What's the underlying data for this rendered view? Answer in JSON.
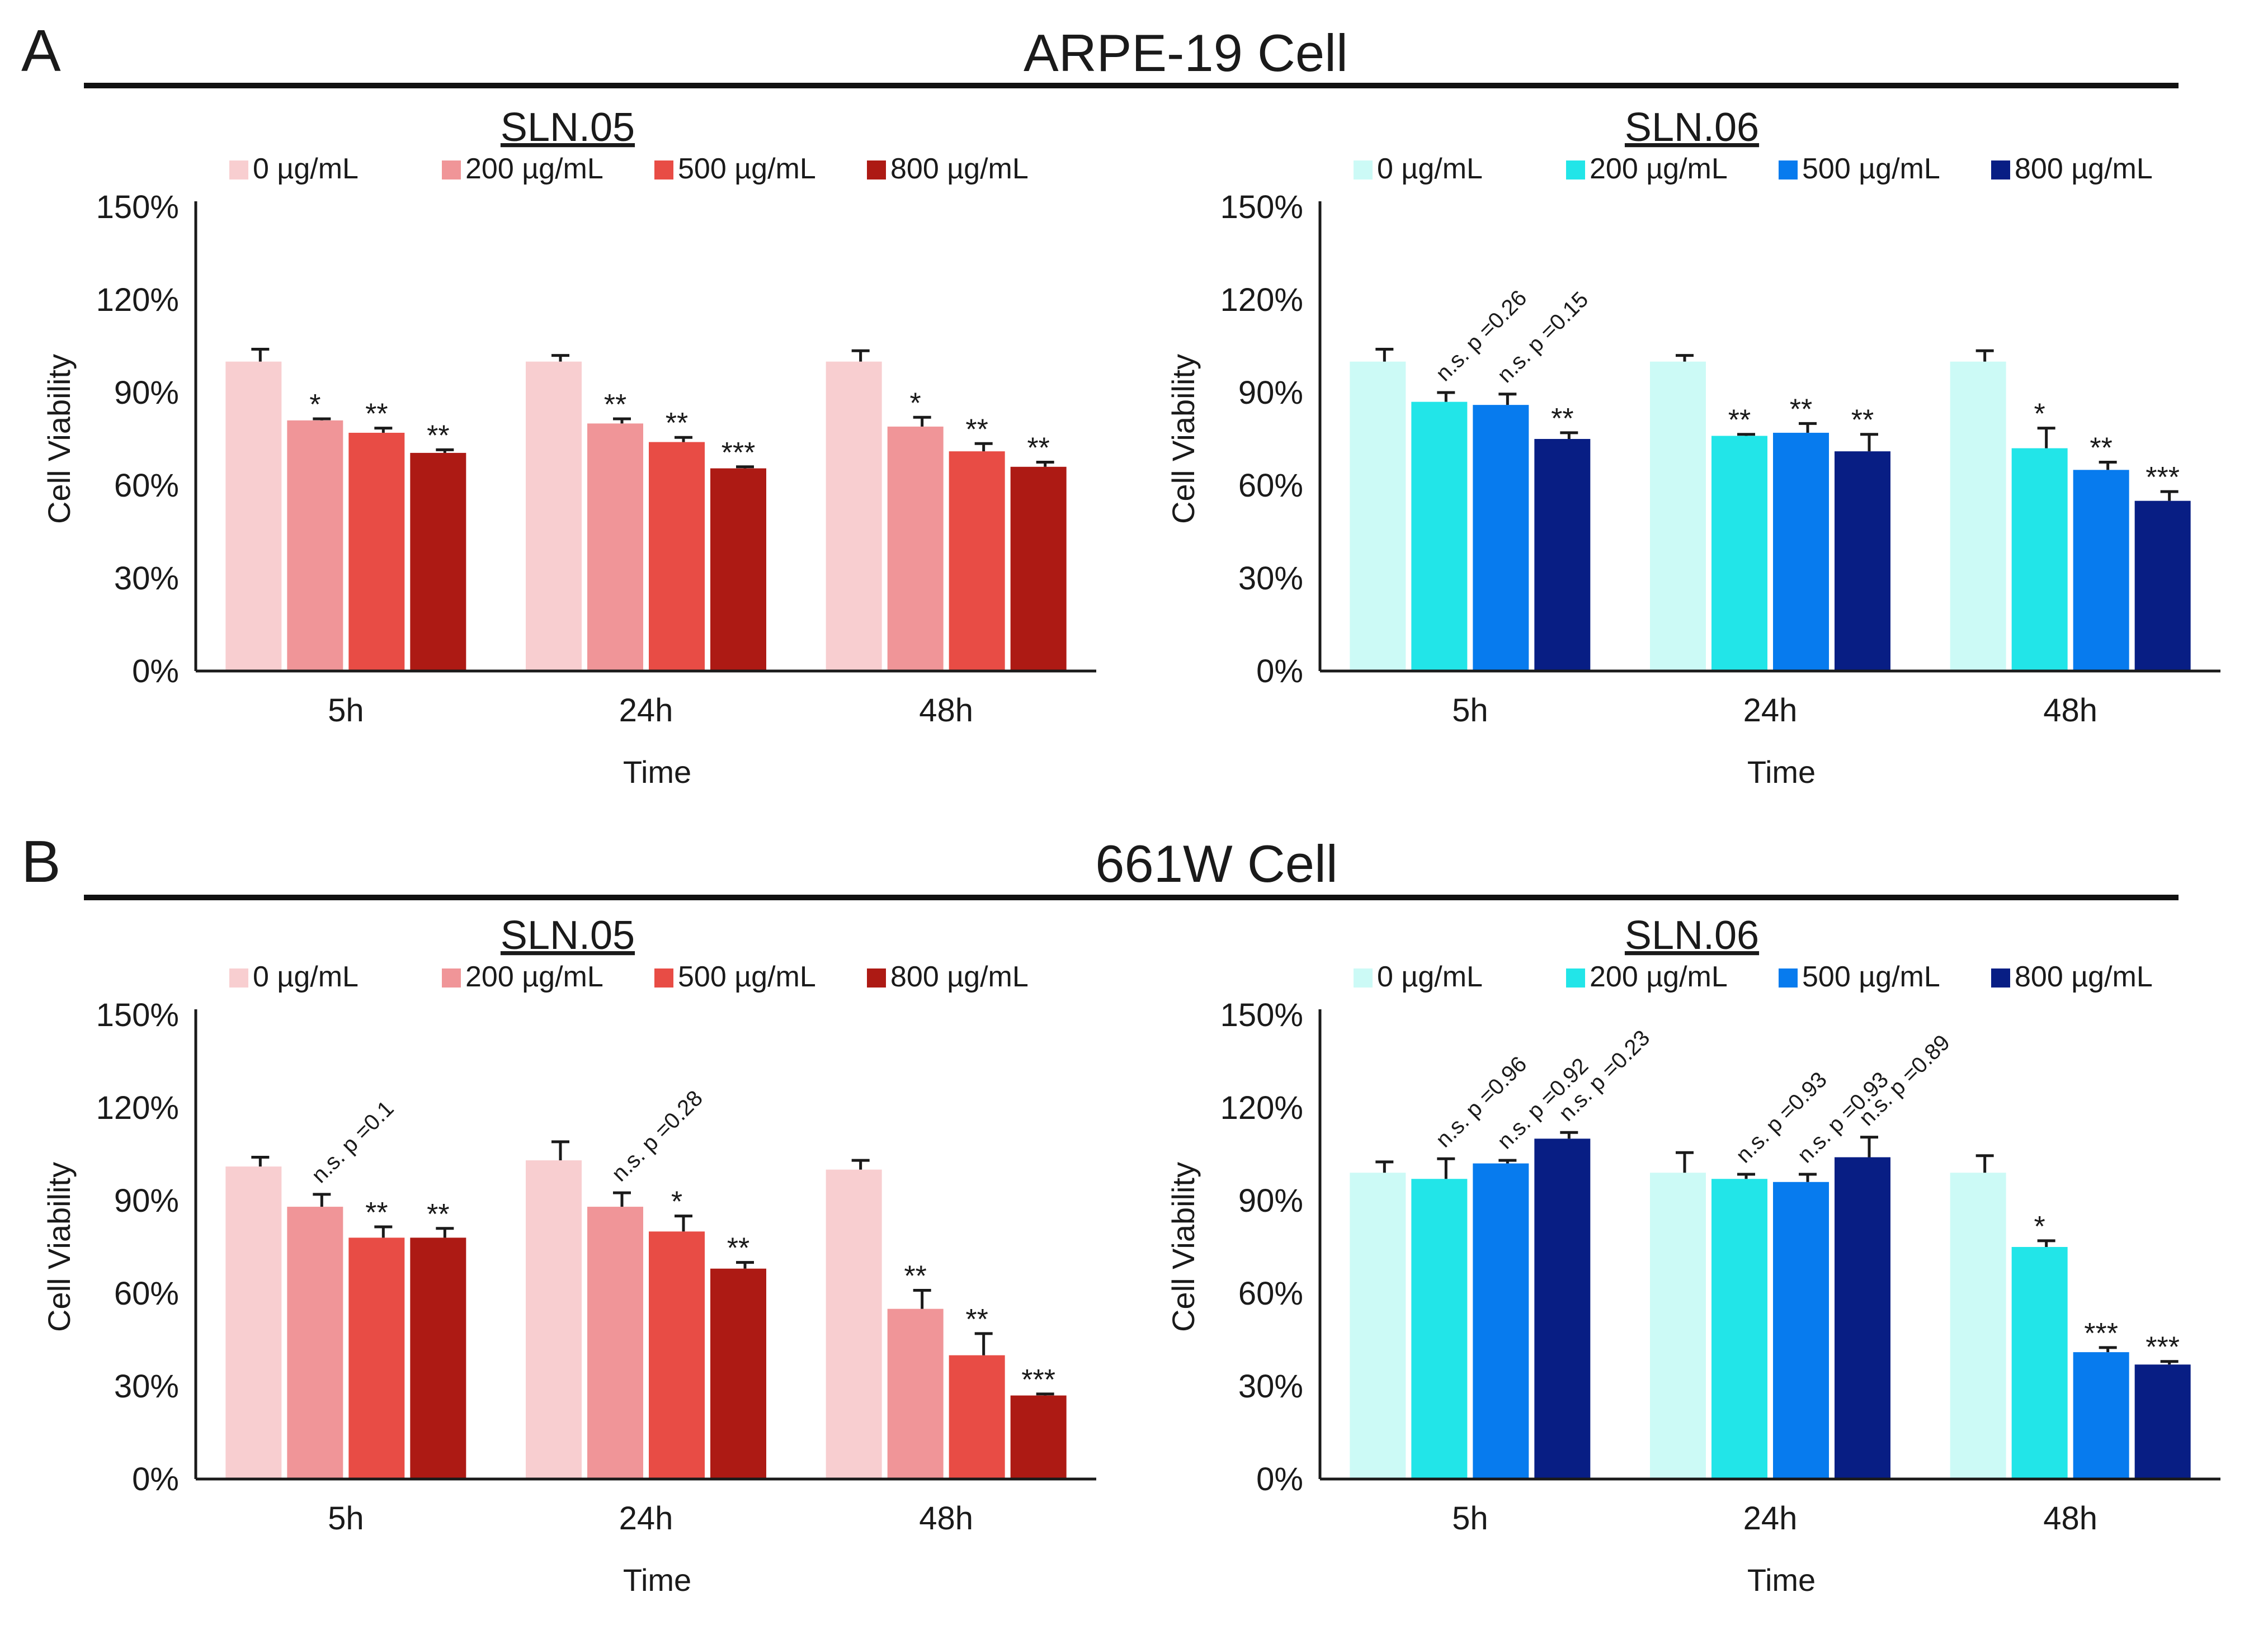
{
  "figure": {
    "sections": [
      {
        "letter": "A",
        "title": "ARPE-19 Cell"
      },
      {
        "letter": "B",
        "title": "661W Cell"
      }
    ]
  },
  "chart_data": [
    {
      "type": "bar",
      "title": "SLN.05",
      "cell_line": "ARPE-19 Cell",
      "xlabel": "Time",
      "ylabel": "Cell Viability",
      "ylim": [
        0,
        150
      ],
      "yticks": [
        "0%",
        "30%",
        "60%",
        "90%",
        "120%",
        "150%"
      ],
      "legend_position": "top",
      "categories": [
        "5h",
        "24h",
        "48h"
      ],
      "series": [
        {
          "name": "0 µg/mL",
          "color": "#F8CED0",
          "values": [
            100,
            100,
            100
          ],
          "errors": [
            4,
            2,
            3.5
          ],
          "labels": [
            "",
            "",
            ""
          ]
        },
        {
          "name": "200 µg/mL",
          "color": "#F09598",
          "values": [
            81,
            80,
            79
          ],
          "errors": [
            0.5,
            1.5,
            3
          ],
          "labels": [
            "*",
            "**",
            "*"
          ]
        },
        {
          "name": "500 µg/mL",
          "color": "#E84C45",
          "values": [
            77,
            74,
            71
          ],
          "errors": [
            1.5,
            1.5,
            2.5
          ],
          "labels": [
            "**",
            "**",
            "**"
          ]
        },
        {
          "name": "800 µg/mL",
          "color": "#AD1A14",
          "values": [
            70.5,
            65.5,
            66
          ],
          "errors": [
            1,
            0.5,
            1.5
          ],
          "labels": [
            "**",
            "***",
            "**"
          ]
        }
      ]
    },
    {
      "type": "bar",
      "title": "SLN.06",
      "cell_line": "ARPE-19 Cell",
      "xlabel": "Time",
      "ylabel": "Cell Viability",
      "ylim": [
        0,
        150
      ],
      "yticks": [
        "0%",
        "30%",
        "60%",
        "90%",
        "120%",
        "150%"
      ],
      "legend_position": "top",
      "categories": [
        "5h",
        "24h",
        "48h"
      ],
      "series": [
        {
          "name": "0 µg/mL",
          "color": "#CCFAF6",
          "values": [
            100,
            100,
            100
          ],
          "errors": [
            4,
            2,
            3.5
          ],
          "labels": [
            "",
            "",
            ""
          ]
        },
        {
          "name": "200 µg/mL",
          "color": "#22E5E8",
          "values": [
            87,
            76,
            72
          ],
          "errors": [
            3,
            0.5,
            6.5
          ],
          "labels": [
            "n.s. p =0.26",
            "**",
            "*"
          ]
        },
        {
          "name": "500 µg/mL",
          "color": "#077BEE",
          "values": [
            86,
            77,
            65
          ],
          "errors": [
            3.5,
            3,
            2.5
          ],
          "labels": [
            "n.s. p =0.15",
            "**",
            "**"
          ]
        },
        {
          "name": "800 µg/mL",
          "color": "#081E84",
          "values": [
            75,
            71,
            55
          ],
          "errors": [
            2,
            5.5,
            3
          ],
          "labels": [
            "**",
            "**",
            "***"
          ]
        }
      ]
    },
    {
      "type": "bar",
      "title": "SLN.05",
      "cell_line": "661W Cell",
      "xlabel": "Time",
      "ylabel": "Cell Viability",
      "ylim": [
        0,
        150
      ],
      "yticks": [
        "0%",
        "30%",
        "60%",
        "90%",
        "120%",
        "150%"
      ],
      "legend_position": "top",
      "categories": [
        "5h",
        "24h",
        "48h"
      ],
      "series": [
        {
          "name": "0 µg/mL",
          "color": "#F8CED0",
          "values": [
            101,
            103,
            100
          ],
          "errors": [
            3,
            6,
            3
          ],
          "labels": [
            "",
            "",
            ""
          ]
        },
        {
          "name": "200 µg/mL",
          "color": "#F09598",
          "values": [
            88,
            88,
            55
          ],
          "errors": [
            4,
            4.5,
            6
          ],
          "labels": [
            "n.s. p =0.1",
            "n.s. p =0.28",
            "**"
          ]
        },
        {
          "name": "500 µg/mL",
          "color": "#E84C45",
          "values": [
            78,
            80,
            40
          ],
          "errors": [
            3.5,
            5,
            7
          ],
          "labels": [
            "**",
            "*",
            "**"
          ]
        },
        {
          "name": "800 µg/mL",
          "color": "#AD1A14",
          "values": [
            78,
            68,
            27
          ],
          "errors": [
            3,
            2,
            0.5
          ],
          "labels": [
            "**",
            "**",
            "***"
          ]
        }
      ]
    },
    {
      "type": "bar",
      "title": "SLN.06",
      "cell_line": "661W Cell",
      "xlabel": "Time",
      "ylabel": "Cell Viability",
      "ylim": [
        0,
        150
      ],
      "yticks": [
        "0%",
        "30%",
        "60%",
        "90%",
        "120%",
        "150%"
      ],
      "legend_position": "top",
      "categories": [
        "5h",
        "24h",
        "48h"
      ],
      "series": [
        {
          "name": "0 µg/mL",
          "color": "#CCFAF6",
          "values": [
            99,
            99,
            99
          ],
          "errors": [
            3.5,
            6.5,
            5.5
          ],
          "labels": [
            "",
            "",
            ""
          ]
        },
        {
          "name": "200 µg/mL",
          "color": "#22E5E8",
          "values": [
            97,
            97,
            75
          ],
          "errors": [
            6.5,
            1.5,
            2
          ],
          "labels": [
            "n.s. p =0.96",
            "n.s. p =0.93",
            "*"
          ]
        },
        {
          "name": "500 µg/mL",
          "color": "#077BEE",
          "values": [
            102,
            96,
            41
          ],
          "errors": [
            1,
            2.5,
            1.5
          ],
          "labels": [
            "n.s. p =0.92",
            "n.s. p =0.93",
            "***"
          ]
        },
        {
          "name": "800 µg/mL",
          "color": "#081E84",
          "values": [
            110,
            104,
            37
          ],
          "errors": [
            2,
            6.5,
            1
          ],
          "labels": [
            "n.s. p =0.23",
            "n.s. p =0.89",
            "***"
          ]
        }
      ]
    }
  ]
}
